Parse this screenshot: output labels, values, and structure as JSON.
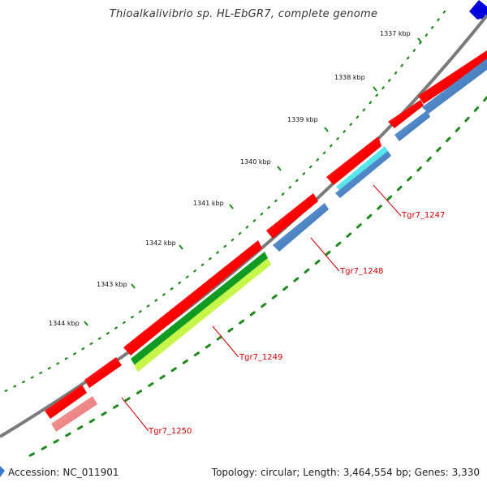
{
  "title": "Thioalkalivibrio sp. HL-EbGR7, complete genome",
  "footer": {
    "accession_label": "Accession:",
    "accession": "NC_011901",
    "topology_label": "Topology:",
    "topology": "circular",
    "length_label": "Length:",
    "length": "3,464,554 bp",
    "genes_label": "Genes:",
    "genes": "3,330"
  },
  "scale_ticks": [
    "1337 kbp",
    "1338 kbp",
    "1339 kbp",
    "1340 kbp",
    "1341 kbp",
    "1342 kbp",
    "1343 kbp",
    "1344 kbp"
  ],
  "gene_labels": [
    "Tgr7_1247",
    "Tgr7_1248",
    "Tgr7_1249",
    "Tgr7_1250"
  ],
  "colors": {
    "backbone": "#7a7a7a",
    "cds": "#ff0000",
    "cog_blue": "#4f86c6",
    "cog_cyan": "#22e8ef",
    "cog_green": "#119b22",
    "cog_lime": "#c7f54a",
    "cog_pink": "#f28080",
    "gc_ticks": "#1e8a1e",
    "label": "#cc0000",
    "marker": "#0000dd"
  }
}
